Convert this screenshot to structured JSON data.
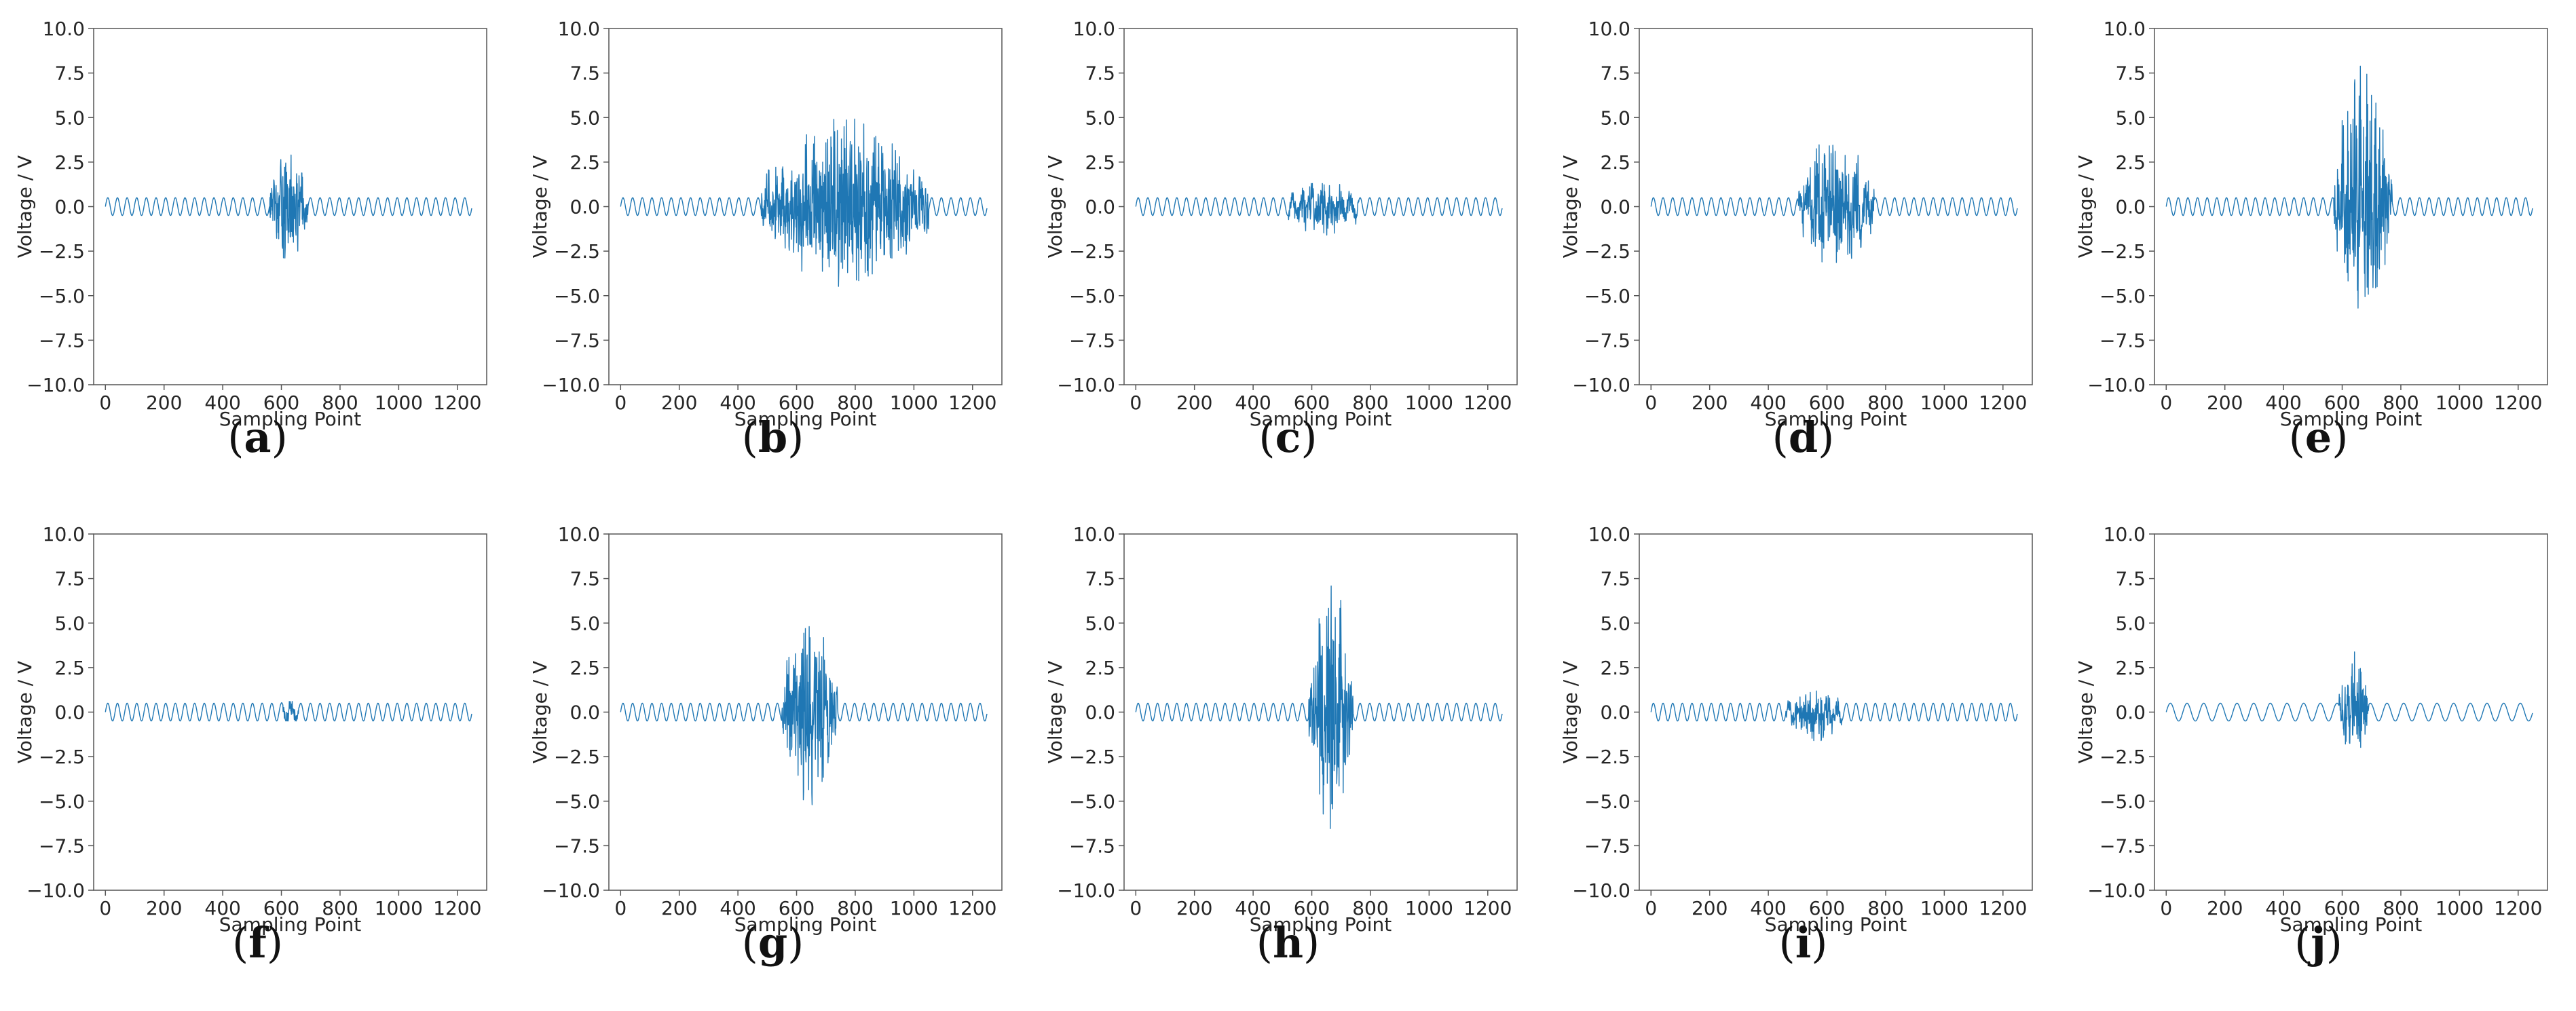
{
  "figure": {
    "line_color": "#1f77b4",
    "axis_color": "#555555"
  },
  "chart_data": [
    {
      "id": "a",
      "caption_label": "a",
      "caption_open": "(",
      "caption_close": ")",
      "type": "line",
      "xlabel": "Sampling Point",
      "ylabel": "Voltage / V",
      "xlim": [
        -40,
        1300
      ],
      "ylim": [
        -10,
        10
      ],
      "xticks": [
        "0",
        "200",
        "400",
        "600",
        "800",
        "1000",
        "1200"
      ],
      "yticks": [
        "10.0",
        "7.5",
        "5.0",
        "2.5",
        "0.0",
        "−2.5",
        "−5.0",
        "−7.5",
        "−10.0"
      ],
      "baseline_amplitude": 0.5,
      "baseline_cycles": 38,
      "disturbance": {
        "start": 560,
        "end": 690,
        "peak_pos": 2.9,
        "peak_neg": -3.3
      },
      "n_points": 1250
    },
    {
      "id": "b",
      "caption_label": "b",
      "caption_open": "(",
      "caption_close": ")",
      "type": "line",
      "xlabel": "Sampling Point",
      "ylabel": "Voltage / V",
      "xlim": [
        -40,
        1300
      ],
      "ylim": [
        -10,
        10
      ],
      "xticks": [
        "0",
        "200",
        "400",
        "600",
        "800",
        "1000",
        "1200"
      ],
      "yticks": [
        "10.0",
        "7.5",
        "5.0",
        "2.5",
        "0.0",
        "−2.5",
        "−5.0",
        "−7.5",
        "−10.0"
      ],
      "baseline_amplitude": 0.5,
      "baseline_cycles": 38,
      "disturbance": {
        "start": 480,
        "end": 1050,
        "peak_pos": 5.0,
        "peak_neg": -4.5
      },
      "n_points": 1250
    },
    {
      "id": "c",
      "caption_label": "c",
      "caption_open": "(",
      "caption_close": ")",
      "type": "line",
      "xlabel": "Sampling Point",
      "ylabel": "Voltage / V",
      "xlim": [
        -40,
        1300
      ],
      "ylim": [
        -10,
        10
      ],
      "xticks": [
        "0",
        "200",
        "400",
        "600",
        "800",
        "1000",
        "1200"
      ],
      "yticks": [
        "10.0",
        "7.5",
        "5.0",
        "2.5",
        "0.0",
        "−2.5",
        "−5.0",
        "−7.5",
        "−10.0"
      ],
      "baseline_amplitude": 0.5,
      "baseline_cycles": 38,
      "disturbance": {
        "start": 520,
        "end": 760,
        "peak_pos": 1.3,
        "peak_neg": -1.6
      },
      "n_points": 1250
    },
    {
      "id": "d",
      "caption_label": "d",
      "caption_open": "(",
      "caption_close": ")",
      "type": "line",
      "xlabel": "Sampling Point",
      "ylabel": "Voltage / V",
      "xlim": [
        -40,
        1300
      ],
      "ylim": [
        -10,
        10
      ],
      "xticks": [
        "0",
        "200",
        "400",
        "600",
        "800",
        "1000",
        "1200"
      ],
      "yticks": [
        "10.0",
        "7.5",
        "5.0",
        "2.5",
        "0.0",
        "−2.5",
        "−5.0",
        "−7.5",
        "−10.0"
      ],
      "baseline_amplitude": 0.5,
      "baseline_cycles": 38,
      "disturbance": {
        "start": 500,
        "end": 760,
        "peak_pos": 4.2,
        "peak_neg": -3.4
      },
      "n_points": 1250
    },
    {
      "id": "e",
      "caption_label": "e",
      "caption_open": "(",
      "caption_close": ")",
      "type": "line",
      "xlabel": "Sampling Point",
      "ylabel": "Voltage / V",
      "xlim": [
        -40,
        1300
      ],
      "ylim": [
        -10,
        10
      ],
      "xticks": [
        "0",
        "200",
        "400",
        "600",
        "800",
        "1000",
        "1200"
      ],
      "yticks": [
        "10.0",
        "7.5",
        "5.0",
        "2.5",
        "0.0",
        "−2.5",
        "−5.0",
        "−7.5",
        "−10.0"
      ],
      "baseline_amplitude": 0.5,
      "baseline_cycles": 38,
      "disturbance": {
        "start": 570,
        "end": 770,
        "peak_pos": 8.0,
        "peak_neg": -5.8
      },
      "n_points": 1250
    },
    {
      "id": "f",
      "caption_label": "f",
      "caption_open": "(",
      "caption_close": ")",
      "type": "line",
      "xlabel": "Sampling Point",
      "ylabel": "Voltage / V",
      "xlim": [
        -40,
        1300
      ],
      "ylim": [
        -10,
        10
      ],
      "xticks": [
        "0",
        "200",
        "400",
        "600",
        "800",
        "1000",
        "1200"
      ],
      "yticks": [
        "10.0",
        "7.5",
        "5.0",
        "2.5",
        "0.0",
        "−2.5",
        "−5.0",
        "−7.5",
        "−10.0"
      ],
      "baseline_amplitude": 0.5,
      "baseline_cycles": 38,
      "disturbance": {
        "start": 600,
        "end": 660,
        "peak_pos": 0.6,
        "peak_neg": -0.5
      },
      "n_points": 1250
    },
    {
      "id": "g",
      "caption_label": "g",
      "caption_open": "(",
      "caption_close": ")",
      "type": "line",
      "xlabel": "Sampling Point",
      "ylabel": "Voltage / V",
      "xlim": [
        -40,
        1300
      ],
      "ylim": [
        -10,
        10
      ],
      "xticks": [
        "0",
        "200",
        "400",
        "600",
        "800",
        "1000",
        "1200"
      ],
      "yticks": [
        "10.0",
        "7.5",
        "5.0",
        "2.5",
        "0.0",
        "−2.5",
        "−5.0",
        "−7.5",
        "−10.0"
      ],
      "baseline_amplitude": 0.5,
      "baseline_cycles": 38,
      "disturbance": {
        "start": 550,
        "end": 740,
        "peak_pos": 5.6,
        "peak_neg": -5.2
      },
      "n_points": 1250
    },
    {
      "id": "h",
      "caption_label": "h",
      "caption_open": "(",
      "caption_close": ")",
      "type": "line",
      "xlabel": "Sampling Point",
      "ylabel": "Voltage / V",
      "xlim": [
        -40,
        1300
      ],
      "ylim": [
        -10,
        10
      ],
      "xticks": [
        "0",
        "200",
        "400",
        "600",
        "800",
        "1000",
        "1200"
      ],
      "yticks": [
        "10.0",
        "7.5",
        "5.0",
        "2.5",
        "0.0",
        "−2.5",
        "−5.0",
        "−7.5",
        "−10.0"
      ],
      "baseline_amplitude": 0.5,
      "baseline_cycles": 38,
      "disturbance": {
        "start": 590,
        "end": 740,
        "peak_pos": 8.1,
        "peak_neg": -6.8
      },
      "n_points": 1250
    },
    {
      "id": "i",
      "caption_label": "i",
      "caption_open": "(",
      "caption_close": ")",
      "type": "line",
      "xlabel": "Sampling Point",
      "ylabel": "Voltage / V",
      "xlim": [
        -40,
        1300
      ],
      "ylim": [
        -10,
        10
      ],
      "xticks": [
        "0",
        "200",
        "400",
        "600",
        "800",
        "1000",
        "1200"
      ],
      "yticks": [
        "10.0",
        "7.5",
        "5.0",
        "2.5",
        "0.0",
        "−2.5",
        "−5.0",
        "−7.5",
        "−10.0"
      ],
      "baseline_amplitude": 0.5,
      "baseline_cycles": 38,
      "disturbance": {
        "start": 460,
        "end": 650,
        "peak_pos": 1.2,
        "peak_neg": -1.6
      },
      "n_points": 1250
    },
    {
      "id": "j",
      "caption_label": "j",
      "caption_open": "(",
      "caption_close": ")",
      "type": "line",
      "xlabel": "Sampling Point",
      "ylabel": "Voltage / V",
      "xlim": [
        -40,
        1300
      ],
      "ylim": [
        -10,
        10
      ],
      "xticks": [
        "0",
        "200",
        "400",
        "600",
        "800",
        "1000",
        "1200"
      ],
      "yticks": [
        "10.0",
        "7.5",
        "5.0",
        "2.5",
        "0.0",
        "−2.5",
        "−5.0",
        "−7.5",
        "−10.0"
      ],
      "baseline_amplitude": 0.5,
      "baseline_cycles": 22,
      "disturbance": {
        "start": 590,
        "end": 690,
        "peak_pos": 3.7,
        "peak_neg": -2.2
      },
      "n_points": 1250
    }
  ]
}
